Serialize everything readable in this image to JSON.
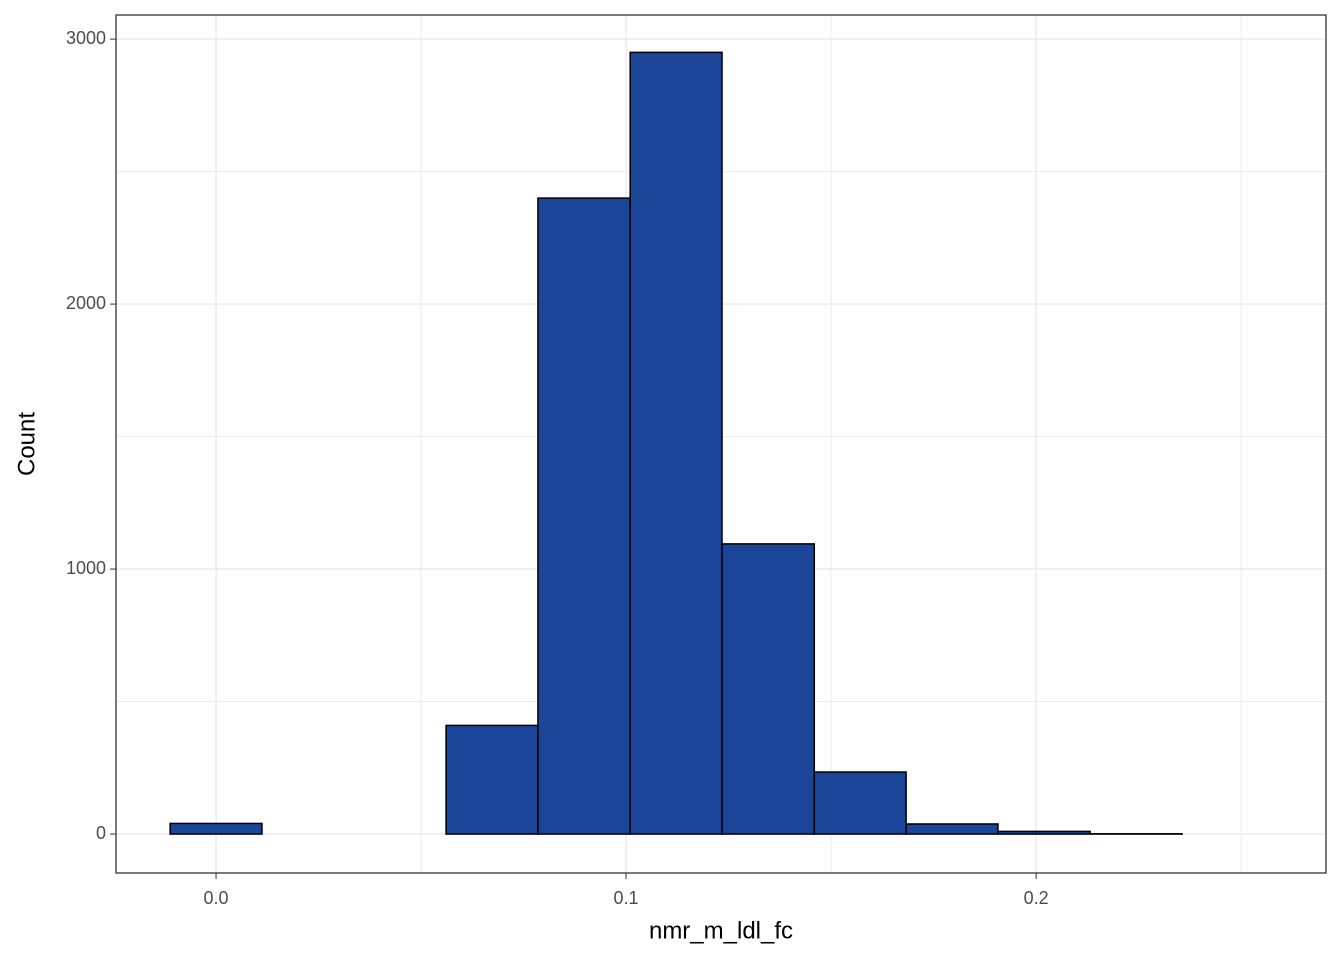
{
  "chart_data": {
    "type": "histogram",
    "x_label": "nmr_m_ldl_fc",
    "y_label": "Count",
    "bins": [
      -0.0112,
      0.0112,
      0.0337,
      0.0561,
      0.0785,
      0.101,
      0.1234,
      0.1459,
      0.1683,
      0.1907,
      0.2132,
      0.2356,
      0.258
    ],
    "counts": [
      40,
      0,
      0,
      410,
      2400,
      2950,
      1095,
      234,
      38,
      10,
      1,
      0
    ],
    "color": "#1a4599",
    "edge_color": "#000000",
    "xlim": [
      -0.0244,
      0.2707
    ],
    "ylim": [
      -147,
      3091
    ],
    "xticks": [
      {
        "value": 0,
        "label": "0.0"
      },
      0.1,
      0.2
    ],
    "yticks": [
      0,
      1000,
      2000,
      3000
    ],
    "x_minor_ticks": [
      0.05,
      0.15,
      0.25
    ],
    "y_minor_ticks": [
      500,
      1500,
      2500
    ],
    "grid": true
  }
}
